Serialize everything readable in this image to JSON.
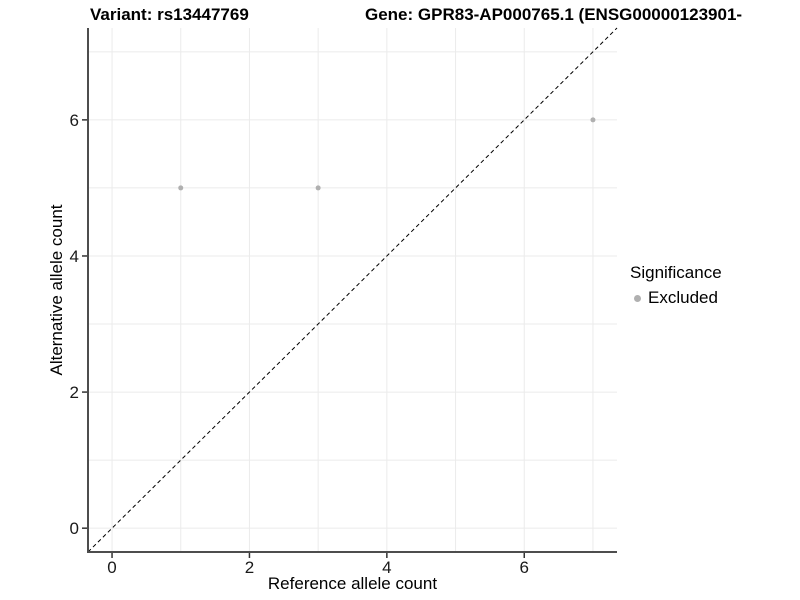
{
  "header": {
    "variant_title": "Variant: rs13447769",
    "gene_title": "Gene: GPR83-AP000765.1 (ENSG00000123901-"
  },
  "chart_data": {
    "type": "scatter",
    "xlabel": "Reference allele count",
    "ylabel": "Alternative allele count",
    "xlim": [
      -0.35,
      7.35
    ],
    "ylim": [
      -0.35,
      7.35
    ],
    "xticks": [
      0,
      2,
      4,
      6
    ],
    "yticks": [
      0,
      2,
      4,
      6
    ],
    "gridlines_x": [
      0,
      1,
      2,
      3,
      4,
      5,
      6,
      7
    ],
    "gridlines_y": [
      0,
      1,
      2,
      3,
      4,
      5,
      6,
      7
    ],
    "grid_on": true,
    "series": [
      {
        "name": "Excluded",
        "color": "#b0b0b0",
        "point_radius": 2.5,
        "points": [
          [
            1,
            5
          ],
          [
            3,
            5
          ],
          [
            7,
            6
          ]
        ]
      }
    ],
    "reference_line": {
      "type": "identity",
      "style": "dashed",
      "color": "#000000"
    },
    "legend": {
      "position": "right",
      "title": "Significance",
      "items": [
        {
          "label": "Excluded",
          "color": "#b0b0b0"
        }
      ]
    },
    "colors": {
      "grid": "#ebebeb",
      "axis_line": "#4d4d4d",
      "tick_mark": "#333333",
      "tick_text": "#1a1a1a"
    }
  }
}
